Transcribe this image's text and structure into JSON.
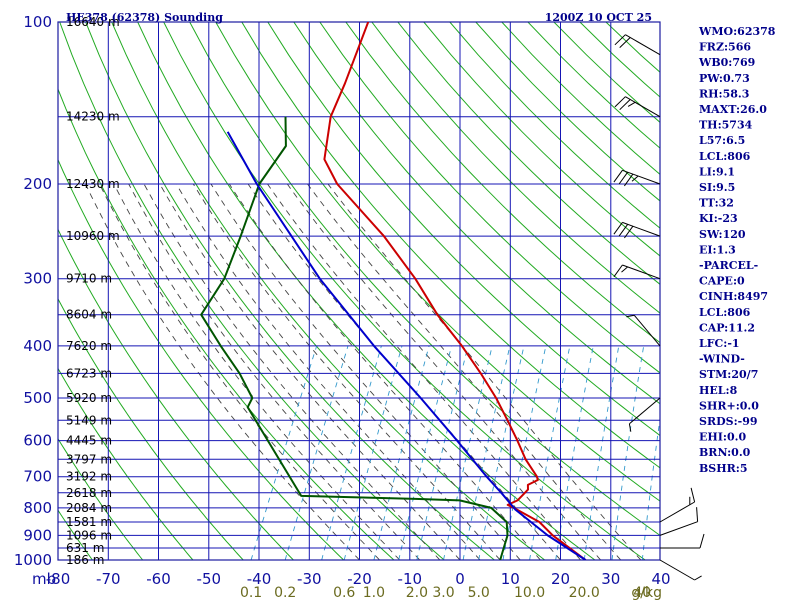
{
  "header": {
    "title": "HE378 (62378) Sounding",
    "time": "1200Z 10 OCT 25"
  },
  "indices": [
    "WMO:62378",
    "FRZ:566",
    "WB0:769",
    "PW:0.73",
    "RH:58.3",
    "MAXT:26.0",
    "TH:5734",
    "L57:6.5",
    "LCL:806",
    "LI:9.1",
    "SI:9.5",
    "TT:32",
    "KI:-23",
    "SW:120",
    "EI:1.3",
    "-PARCEL-",
    "CAPE:0",
    "CINH:8497",
    "LCL:806",
    "CAP:11.2",
    "LFC:-1",
    "-WIND-",
    "STM:20/7",
    "HEL:8",
    "SHR+:0.0",
    "SRDS:-99",
    "EHI:0.0",
    "BRN:0.0",
    "BSHR:5"
  ],
  "colors": {
    "frame": "#1a1aa0",
    "isobar": "#1515b4",
    "dry_adiabat": "#22aa22",
    "moist_adiabat": "#444444",
    "mixing_ratio": "#3399cc",
    "temperature": "#cc0000",
    "dewpoint": "#005500",
    "parcel": "#0000cc",
    "wind_label": "#6b6b20"
  },
  "chart_data": {
    "type": "line",
    "diagram": "skew-T log-P",
    "x_axis_unit": "mb",
    "temperature_ticks": [
      -80,
      -70,
      -60,
      -50,
      -40,
      -30,
      -20,
      -10,
      0,
      10,
      20,
      30,
      40
    ],
    "temperature_tick_labels": [
      "-80",
      "-70",
      "-60",
      "-50",
      "-40",
      "-30",
      "-20",
      "-10",
      "0",
      "10",
      "20",
      "30",
      "40"
    ],
    "pressure_levels": [
      100,
      150,
      200,
      250,
      300,
      350,
      400,
      450,
      500,
      550,
      600,
      650,
      700,
      750,
      800,
      850,
      900,
      950,
      1000
    ],
    "pressure_labels": [
      {
        "p": 100,
        "label": "100"
      },
      {
        "p": 200,
        "label": "200"
      },
      {
        "p": 300,
        "label": "300"
      },
      {
        "p": 400,
        "label": "400"
      },
      {
        "p": 500,
        "label": "500"
      },
      {
        "p": 600,
        "label": "600"
      },
      {
        "p": 700,
        "label": "700"
      },
      {
        "p": 800,
        "label": "800"
      },
      {
        "p": 900,
        "label": "900"
      },
      {
        "p": 1000,
        "label": "1000"
      }
    ],
    "heights": [
      {
        "p": 100,
        "label": "16640 m"
      },
      {
        "p": 150,
        "label": "14230 m"
      },
      {
        "p": 200,
        "label": "12430 m"
      },
      {
        "p": 250,
        "label": "10960 m"
      },
      {
        "p": 300,
        "label": "9710 m"
      },
      {
        "p": 350,
        "label": "8604 m"
      },
      {
        "p": 400,
        "label": "7620 m"
      },
      {
        "p": 450,
        "label": "6723 m"
      },
      {
        "p": 500,
        "label": "5920 m"
      },
      {
        "p": 550,
        "label": "5149 m"
      },
      {
        "p": 600,
        "label": "4445 m"
      },
      {
        "p": 650,
        "label": "3797 m"
      },
      {
        "p": 700,
        "label": "3192 m"
      },
      {
        "p": 750,
        "label": "2618 m"
      },
      {
        "p": 800,
        "label": "2084 m"
      },
      {
        "p": 850,
        "label": "1581 m"
      },
      {
        "p": 900,
        "label": "1096 m"
      },
      {
        "p": 950,
        "label": "631 m"
      },
      {
        "p": 1000,
        "label": "186 m"
      }
    ],
    "mixing_ratio_labels": [
      "0.1",
      "0.2",
      "0.6",
      "1.0",
      "2.0",
      "3.0",
      "5.0",
      "10.0",
      "20.0",
      "40",
      "g/kg"
    ],
    "series": [
      {
        "key": "temperature",
        "points": [
          {
            "p": 100,
            "t": -72.0
          },
          {
            "p": 130,
            "t": -70.5
          },
          {
            "p": 150,
            "t": -70.0
          },
          {
            "p": 180,
            "t": -67.0
          },
          {
            "p": 200,
            "t": -62.0
          },
          {
            "p": 250,
            "t": -47.5
          },
          {
            "p": 300,
            "t": -37.0
          },
          {
            "p": 350,
            "t": -29.0
          },
          {
            "p": 400,
            "t": -21.0
          },
          {
            "p": 450,
            "t": -14.5
          },
          {
            "p": 500,
            "t": -9.0
          },
          {
            "p": 550,
            "t": -4.5
          },
          {
            "p": 600,
            "t": -0.5
          },
          {
            "p": 650,
            "t": 3.0
          },
          {
            "p": 700,
            "t": 7.0
          },
          {
            "p": 710,
            "t": 7.5
          },
          {
            "p": 725,
            "t": 6.0
          },
          {
            "p": 740,
            "t": 6.5
          },
          {
            "p": 775,
            "t": 5.5
          },
          {
            "p": 790,
            "t": 4.0
          },
          {
            "p": 800,
            "t": 5.5
          },
          {
            "p": 850,
            "t": 12.0
          },
          {
            "p": 900,
            "t": 16.0
          },
          {
            "p": 1000,
            "t": 25.0
          }
        ]
      },
      {
        "key": "dewpoint",
        "points": [
          {
            "p": 150,
            "t": -79.0
          },
          {
            "p": 170,
            "t": -76.0
          },
          {
            "p": 200,
            "t": -77.5
          },
          {
            "p": 250,
            "t": -76.0
          },
          {
            "p": 300,
            "t": -75.0
          },
          {
            "p": 350,
            "t": -76.0
          },
          {
            "p": 400,
            "t": -69.0
          },
          {
            "p": 450,
            "t": -62.5
          },
          {
            "p": 500,
            "t": -57.5
          },
          {
            "p": 520,
            "t": -57.5
          },
          {
            "p": 760,
            "t": -38.0
          },
          {
            "p": 770,
            "t": -15.0
          },
          {
            "p": 775,
            "t": -6.0
          },
          {
            "p": 800,
            "t": 1.0
          },
          {
            "p": 850,
            "t": 5.5
          },
          {
            "p": 900,
            "t": 7.0
          },
          {
            "p": 950,
            "t": 7.5
          },
          {
            "p": 1000,
            "t": 8.0
          }
        ]
      },
      {
        "key": "parcel",
        "points": [
          {
            "p": 1000,
            "t": 25.0
          },
          {
            "p": 900,
            "t": 15.0
          },
          {
            "p": 806,
            "t": 6.0
          },
          {
            "p": 750,
            "t": 1.5
          },
          {
            "p": 700,
            "t": -3.0
          },
          {
            "p": 600,
            "t": -12.5
          },
          {
            "p": 500,
            "t": -24.0
          },
          {
            "p": 400,
            "t": -38.5
          },
          {
            "p": 300,
            "t": -56.0
          },
          {
            "p": 200,
            "t": -78.0
          },
          {
            "p": 170,
            "t": -86.0
          },
          {
            "p": 160,
            "t": -89.0
          }
        ]
      }
    ],
    "winds": [
      {
        "p": 115,
        "dir": 300,
        "spd": 20
      },
      {
        "p": 150,
        "dir": 300,
        "spd": 25
      },
      {
        "p": 200,
        "dir": 290,
        "spd": 35
      },
      {
        "p": 250,
        "dir": 290,
        "spd": 30
      },
      {
        "p": 300,
        "dir": 290,
        "spd": 15
      },
      {
        "p": 400,
        "dir": 320,
        "spd": 5
      },
      {
        "p": 500,
        "dir": 230,
        "spd": 5
      },
      {
        "p": 850,
        "dir": 60,
        "spd": 15
      },
      {
        "p": 900,
        "dir": 70,
        "spd": 10
      },
      {
        "p": 950,
        "dir": 90,
        "spd": 10
      },
      {
        "p": 1000,
        "dir": 120,
        "spd": 5
      }
    ]
  }
}
